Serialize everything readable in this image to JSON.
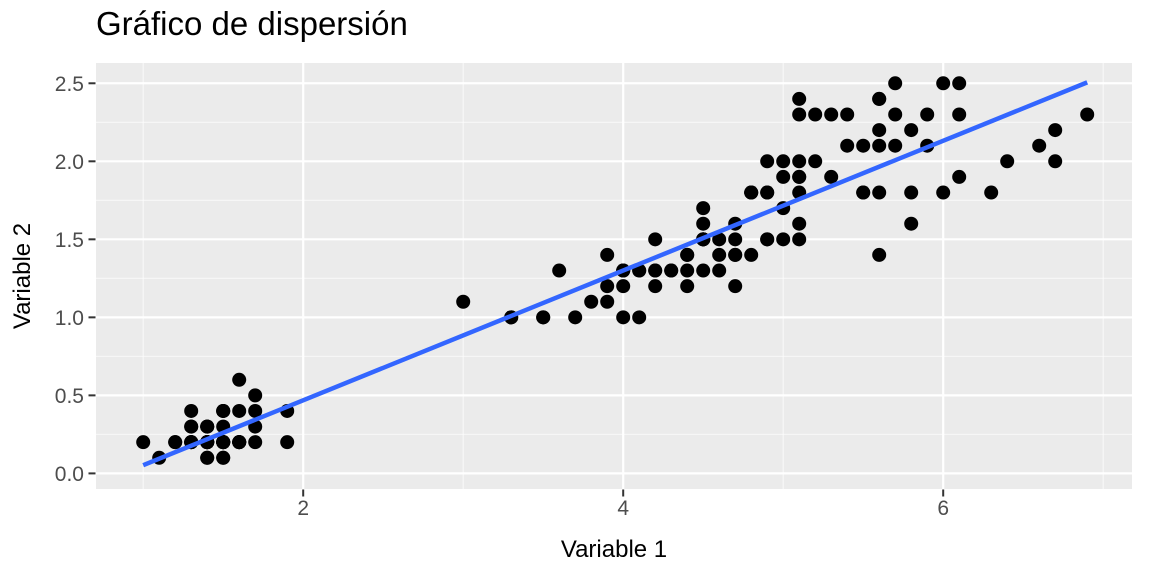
{
  "chart_data": {
    "type": "scatter",
    "title": "Gráfico de dispersión",
    "xlabel": "Variable 1",
    "ylabel": "Variable 2",
    "xlim": [
      0.705,
      7.18
    ],
    "ylim": [
      -0.1,
      2.63
    ],
    "x_ticks": [
      2,
      4,
      6
    ],
    "x_tick_labels": [
      "2",
      "4",
      "6"
    ],
    "y_ticks": [
      0,
      0.5,
      1,
      1.5,
      2,
      2.5
    ],
    "y_tick_labels": [
      "0.0",
      "0.5",
      "1.0",
      "1.5",
      "2.0",
      "2.5"
    ],
    "x_minor_ticks": [
      1,
      3,
      5,
      7
    ],
    "y_minor_ticks": [
      0.25,
      0.75,
      1.25,
      1.75,
      2.25
    ],
    "grid": true,
    "legend": "none",
    "points": [
      [
        1.4,
        0.2
      ],
      [
        1.4,
        0.2
      ],
      [
        1.3,
        0.2
      ],
      [
        1.5,
        0.2
      ],
      [
        1.4,
        0.2
      ],
      [
        1.7,
        0.4
      ],
      [
        1.4,
        0.3
      ],
      [
        1.5,
        0.2
      ],
      [
        1.4,
        0.2
      ],
      [
        1.5,
        0.1
      ],
      [
        1.5,
        0.2
      ],
      [
        1.6,
        0.2
      ],
      [
        1.4,
        0.1
      ],
      [
        1.1,
        0.1
      ],
      [
        1.2,
        0.2
      ],
      [
        1.5,
        0.4
      ],
      [
        1.3,
        0.4
      ],
      [
        1.4,
        0.3
      ],
      [
        1.7,
        0.3
      ],
      [
        1.5,
        0.3
      ],
      [
        1.7,
        0.2
      ],
      [
        1.5,
        0.4
      ],
      [
        1.0,
        0.2
      ],
      [
        1.7,
        0.5
      ],
      [
        1.9,
        0.2
      ],
      [
        1.6,
        0.2
      ],
      [
        1.6,
        0.4
      ],
      [
        1.5,
        0.2
      ],
      [
        1.4,
        0.2
      ],
      [
        1.6,
        0.2
      ],
      [
        1.6,
        0.2
      ],
      [
        1.5,
        0.4
      ],
      [
        1.5,
        0.1
      ],
      [
        1.4,
        0.2
      ],
      [
        1.5,
        0.2
      ],
      [
        1.2,
        0.2
      ],
      [
        1.3,
        0.2
      ],
      [
        1.4,
        0.1
      ],
      [
        1.3,
        0.2
      ],
      [
        1.5,
        0.2
      ],
      [
        1.3,
        0.3
      ],
      [
        1.3,
        0.3
      ],
      [
        1.3,
        0.2
      ],
      [
        1.6,
        0.6
      ],
      [
        1.9,
        0.4
      ],
      [
        1.4,
        0.3
      ],
      [
        1.6,
        0.2
      ],
      [
        1.4,
        0.2
      ],
      [
        1.5,
        0.2
      ],
      [
        1.4,
        0.2
      ],
      [
        4.7,
        1.4
      ],
      [
        4.5,
        1.5
      ],
      [
        4.9,
        1.5
      ],
      [
        4.0,
        1.3
      ],
      [
        4.6,
        1.5
      ],
      [
        4.5,
        1.3
      ],
      [
        4.7,
        1.6
      ],
      [
        3.3,
        1.0
      ],
      [
        4.6,
        1.3
      ],
      [
        3.9,
        1.4
      ],
      [
        3.5,
        1.0
      ],
      [
        4.2,
        1.5
      ],
      [
        4.0,
        1.0
      ],
      [
        4.7,
        1.4
      ],
      [
        3.6,
        1.3
      ],
      [
        4.4,
        1.4
      ],
      [
        4.5,
        1.5
      ],
      [
        4.1,
        1.0
      ],
      [
        4.5,
        1.5
      ],
      [
        3.9,
        1.1
      ],
      [
        4.8,
        1.8
      ],
      [
        4.0,
        1.3
      ],
      [
        4.9,
        1.5
      ],
      [
        4.7,
        1.2
      ],
      [
        4.3,
        1.3
      ],
      [
        4.4,
        1.4
      ],
      [
        4.8,
        1.4
      ],
      [
        5.0,
        1.7
      ],
      [
        4.5,
        1.5
      ],
      [
        3.5,
        1.0
      ],
      [
        3.8,
        1.1
      ],
      [
        3.7,
        1.0
      ],
      [
        3.9,
        1.2
      ],
      [
        5.1,
        1.6
      ],
      [
        4.5,
        1.5
      ],
      [
        4.5,
        1.6
      ],
      [
        4.7,
        1.5
      ],
      [
        4.4,
        1.3
      ],
      [
        4.1,
        1.3
      ],
      [
        4.0,
        1.3
      ],
      [
        4.4,
        1.2
      ],
      [
        4.6,
        1.4
      ],
      [
        4.0,
        1.2
      ],
      [
        3.3,
        1.0
      ],
      [
        4.2,
        1.3
      ],
      [
        4.2,
        1.2
      ],
      [
        4.2,
        1.3
      ],
      [
        4.3,
        1.3
      ],
      [
        3.0,
        1.1
      ],
      [
        4.1,
        1.3
      ],
      [
        6.0,
        2.5
      ],
      [
        5.1,
        1.9
      ],
      [
        5.9,
        2.1
      ],
      [
        5.6,
        1.8
      ],
      [
        5.8,
        2.2
      ],
      [
        6.6,
        2.1
      ],
      [
        4.5,
        1.7
      ],
      [
        6.3,
        1.8
      ],
      [
        5.8,
        1.8
      ],
      [
        6.1,
        2.5
      ],
      [
        5.1,
        2.0
      ],
      [
        5.3,
        1.9
      ],
      [
        5.5,
        2.1
      ],
      [
        5.0,
        2.0
      ],
      [
        5.1,
        2.4
      ],
      [
        5.3,
        2.3
      ],
      [
        5.5,
        1.8
      ],
      [
        6.7,
        2.2
      ],
      [
        6.9,
        2.3
      ],
      [
        5.0,
        1.5
      ],
      [
        5.7,
        2.3
      ],
      [
        4.9,
        2.0
      ],
      [
        6.7,
        2.0
      ],
      [
        4.9,
        1.8
      ],
      [
        5.7,
        2.1
      ],
      [
        6.0,
        1.8
      ],
      [
        4.8,
        1.8
      ],
      [
        4.9,
        1.8
      ],
      [
        5.6,
        2.1
      ],
      [
        5.8,
        1.6
      ],
      [
        6.1,
        1.9
      ],
      [
        6.4,
        2.0
      ],
      [
        5.6,
        2.2
      ],
      [
        5.1,
        1.5
      ],
      [
        5.6,
        1.4
      ],
      [
        6.1,
        2.3
      ],
      [
        5.6,
        2.4
      ],
      [
        5.5,
        1.8
      ],
      [
        4.8,
        1.8
      ],
      [
        5.4,
        2.1
      ],
      [
        5.6,
        2.4
      ],
      [
        5.1,
        2.3
      ],
      [
        5.1,
        1.9
      ],
      [
        5.9,
        2.3
      ],
      [
        5.7,
        2.5
      ],
      [
        5.2,
        2.3
      ],
      [
        5.0,
        1.9
      ],
      [
        5.2,
        2.0
      ],
      [
        5.4,
        2.3
      ],
      [
        5.1,
        1.8
      ]
    ],
    "trend_line": {
      "kind": "linear_fit",
      "slope": 0.4158,
      "intercept": -0.3631,
      "x_start": 1.0,
      "y_start": 0.0527,
      "x_end": 6.9,
      "y_end": 2.5058,
      "color": "#3366FF",
      "width": 4.5
    },
    "style": {
      "panel_bg": "#EBEBEB",
      "grid_major_color": "#FFFFFF",
      "grid_minor_color": "#FFFFFF",
      "grid_minor_opacity": 0.65,
      "point_color": "#000000",
      "point_radius": 7,
      "tick_label_color": "#4D4D4D",
      "tick_mark_color": "#333333",
      "tick_label_size": 21
    }
  }
}
